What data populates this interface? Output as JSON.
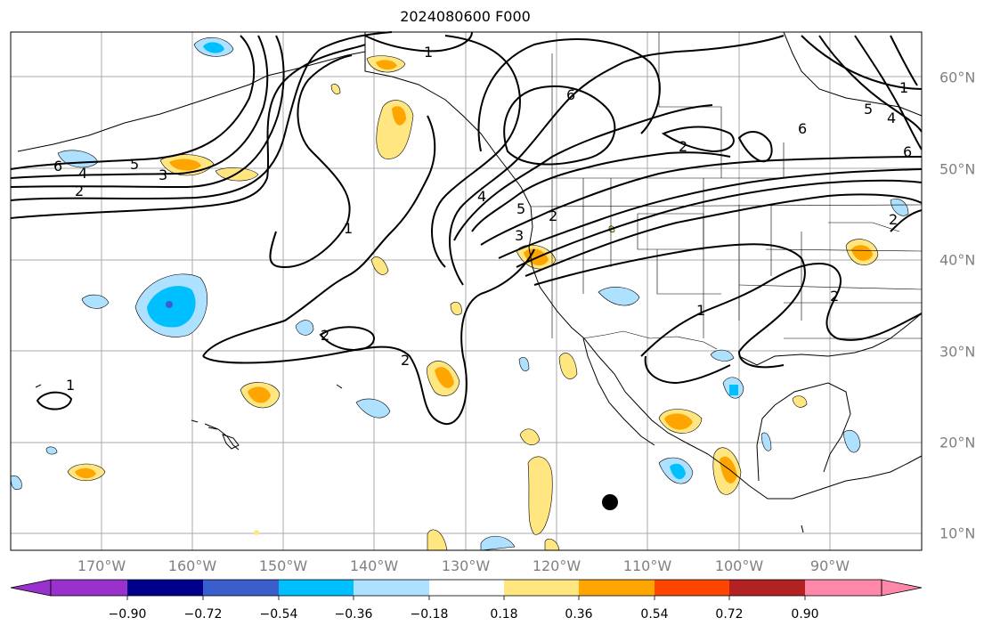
{
  "title": "2024080600 F000",
  "longitude_labels": [
    "170°W",
    "160°W",
    "150°W",
    "140°W",
    "130°W",
    "120°W",
    "110°W",
    "100°W",
    "90°W"
  ],
  "latitude_labels": [
    "60°N",
    "50°N",
    "40°N",
    "30°N",
    "20°N",
    "10°N"
  ],
  "contour_labels": [
    "1",
    "2",
    "3",
    "4",
    "5",
    "6"
  ],
  "colorbar": {
    "tick_labels": [
      "−0.90",
      "−0.72",
      "−0.54",
      "−0.36",
      "−0.18",
      "0.18",
      "0.36",
      "0.54",
      "0.72",
      "0.90"
    ],
    "colors": [
      "#9932cc",
      "#00008b",
      "#3a5fcd",
      "#00bfff",
      "#aee0ff",
      "#ffffff",
      "#ffe680",
      "#ffa500",
      "#ff4500",
      "#b22222",
      "#ff88aa"
    ]
  },
  "map": {
    "map_extent_lon": [
      -180,
      -80
    ],
    "map_extent_lat": [
      8,
      65
    ],
    "positive_color": "#ffa500",
    "negative_color": "#00bfff",
    "marker": {
      "lon": -114,
      "lat": 13
    }
  }
}
